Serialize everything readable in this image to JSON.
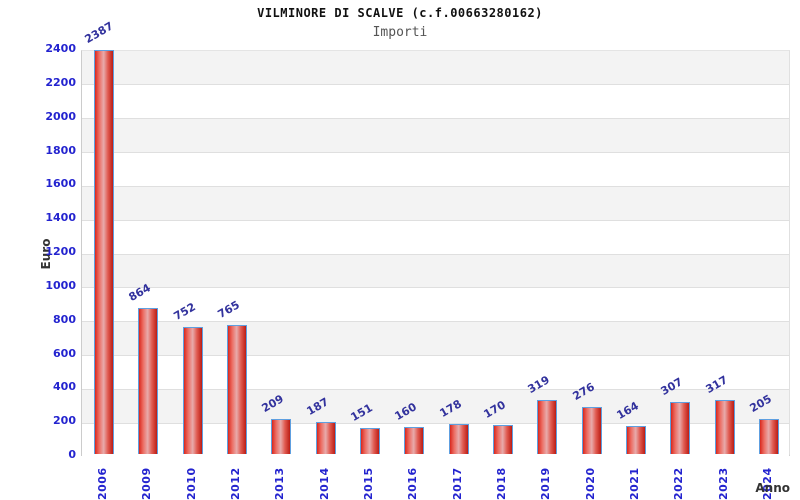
{
  "header": {
    "title": "VILMINORE DI SCALVE (c.f.00663280162)",
    "subtitle": "Importi"
  },
  "chart_data": {
    "type": "bar",
    "title": "VILMINORE DI SCALVE (c.f.00663280162)",
    "subtitle": "Importi",
    "xlabel": "Anno",
    "ylabel": "Euro",
    "categories": [
      "2006",
      "2009",
      "2010",
      "2012",
      "2013",
      "2014",
      "2015",
      "2016",
      "2017",
      "2018",
      "2019",
      "2020",
      "2021",
      "2022",
      "2023",
      "2024"
    ],
    "values": [
      2387,
      864,
      752,
      765,
      209,
      187,
      151,
      160,
      178,
      170,
      319,
      276,
      164,
      307,
      317,
      205
    ],
    "ylim": [
      0,
      2400
    ],
    "ytick_step": 200,
    "grid": true,
    "band_fill": true,
    "legend": "none",
    "colors": {
      "bar_edge_border": "#5e9fe0",
      "bar_red_dark": "#bb1d15",
      "bar_red_light": "#e8abab",
      "tick_label": "#2323cf",
      "value_label": "#32329d",
      "axis_title": "#333333",
      "band_gray": "#f3f3f3",
      "gridline": "#dfdfdf",
      "title": "#111111",
      "subtitle": "#555555"
    }
  }
}
